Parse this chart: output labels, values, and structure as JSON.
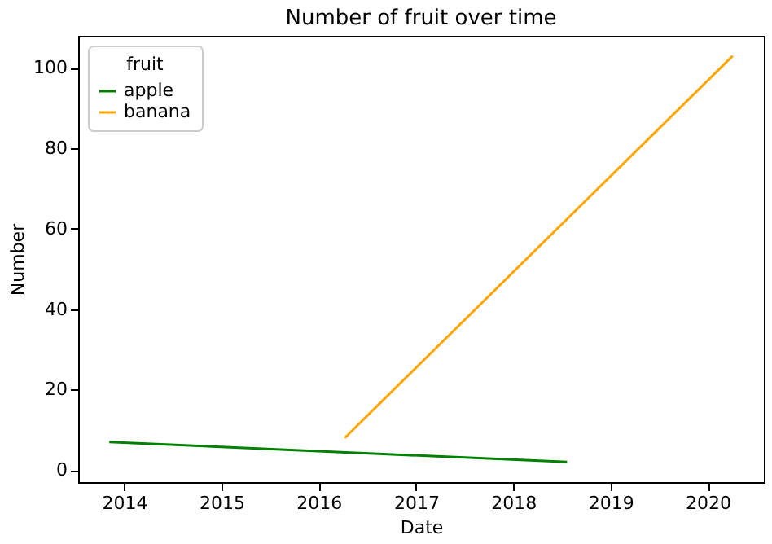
{
  "chart_data": {
    "type": "line",
    "title": "Number of fruit over time",
    "xlabel": "Date",
    "ylabel": "Number",
    "legend_title": "fruit",
    "series": [
      {
        "name": "apple",
        "color": "#008000",
        "x": [
          "2013-11-06",
          "2018-07-22"
        ],
        "values": [
          7,
          2
        ]
      },
      {
        "name": "banana",
        "color": "#ffa500",
        "x": [
          "2016-04-08",
          "2020-04-04"
        ],
        "values": [
          8,
          103
        ]
      }
    ],
    "xlim": [
      "2013-07-12",
      "2020-07-30"
    ],
    "xticks": [
      "2014",
      "2015",
      "2016",
      "2017",
      "2018",
      "2019",
      "2020"
    ],
    "ylim": [
      -3,
      108
    ],
    "yticks": [
      0,
      20,
      40,
      60,
      80,
      100
    ],
    "grid": false,
    "legend": "top left",
    "marker": "none",
    "line_style": "solid"
  }
}
